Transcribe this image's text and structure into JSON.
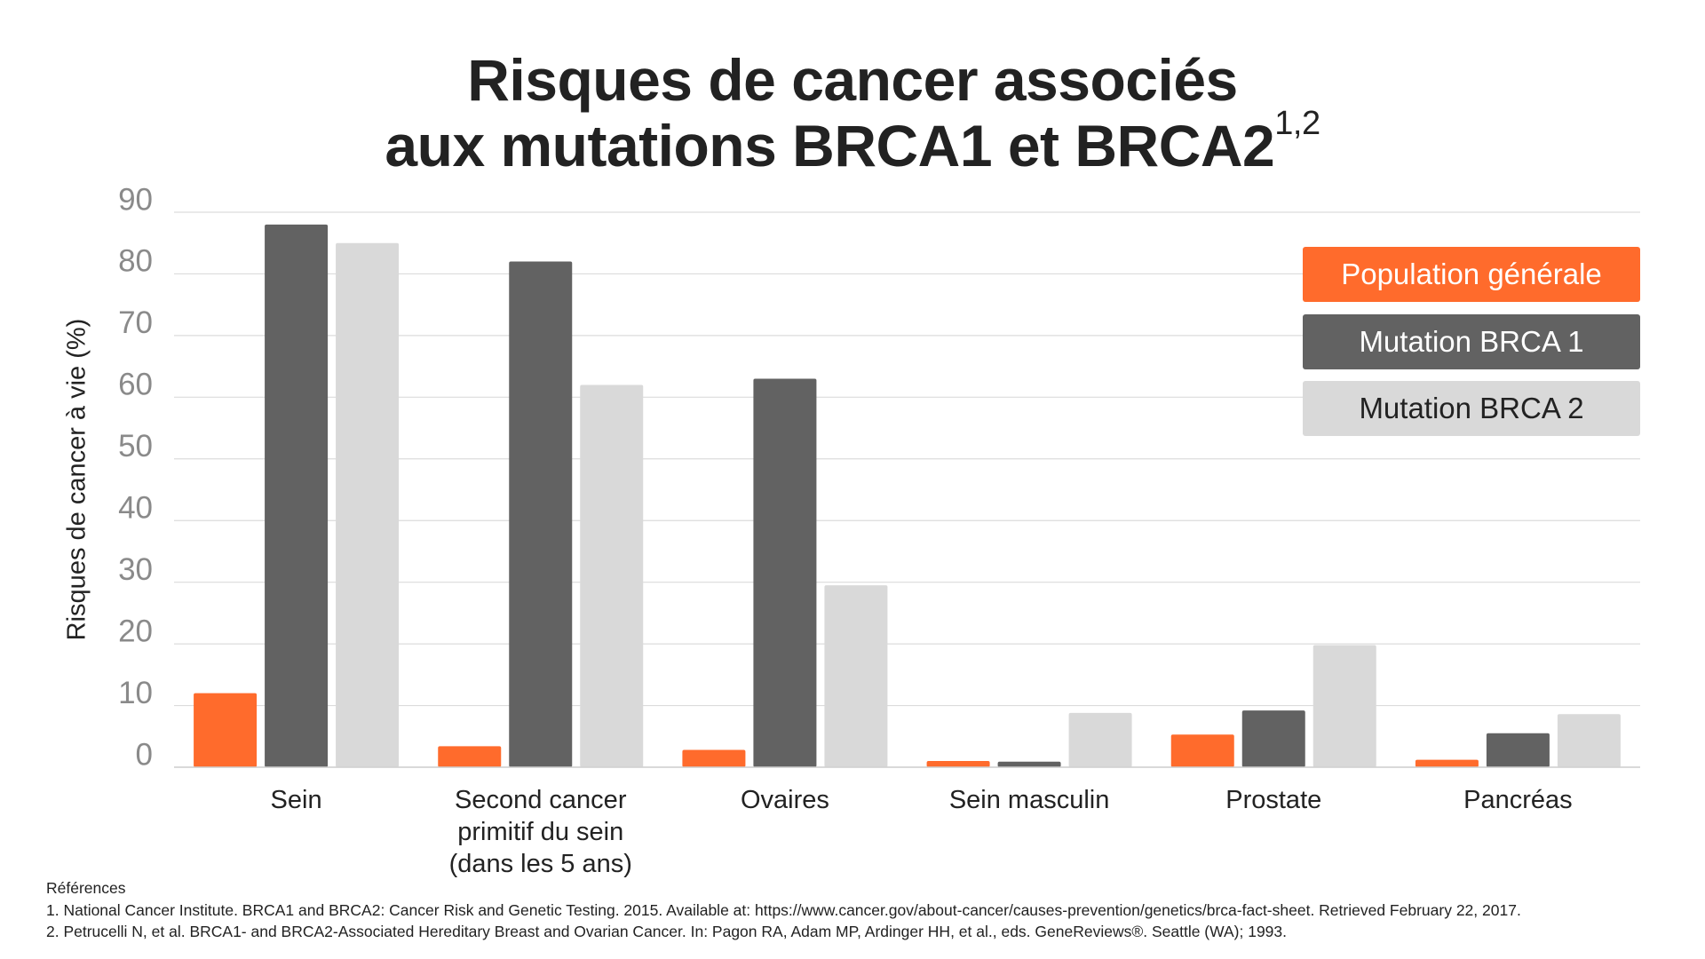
{
  "chart_data": {
    "type": "bar",
    "title_lines": [
      "Risques de cancer associés",
      "aux mutations BRCA1 et BRCA2"
    ],
    "title_superscript": "1,2",
    "y_label": "Risques de cancer à vie (%)",
    "categories": [
      "Sein",
      "Second cancer primitif du sein (dans les 5 ans)",
      "Ovaires",
      "Sein masculin",
      "Prostate",
      "Pancréas"
    ],
    "series": [
      {
        "name": "Population générale",
        "color": "#ff6b2c",
        "text_color": "#ffffff",
        "values": [
          12,
          3.4,
          2.8,
          1,
          5.3,
          1.2
        ]
      },
      {
        "name": "Mutation BRCA 1",
        "color": "#626262",
        "text_color": "#ffffff",
        "values": [
          88,
          82,
          63,
          0.9,
          9.2,
          5.5
        ]
      },
      {
        "name": "Mutation BRCA 2",
        "color": "#d9d9d9",
        "text_color": "#222222",
        "values": [
          85,
          62,
          29.5,
          8.8,
          19.8,
          8.6
        ]
      }
    ],
    "ylim": [
      0,
      90
    ],
    "yticks": [
      0,
      10,
      20,
      30,
      40,
      50,
      60,
      70,
      80,
      90
    ],
    "grid": true,
    "legend_position": "top-right",
    "references_title": "Références",
    "references": [
      "1. National Cancer Institute. BRCA1 and BRCA2: Cancer Risk and Genetic Testing. 2015. Available at: https://www.cancer.gov/about-cancer/causes-prevention/genetics/brca-fact-sheet. Retrieved February 22, 2017.",
      "2. Petrucelli N, et al. BRCA1- and BRCA2-Associated Hereditary Breast and Ovarian Cancer. In: Pagon RA, Adam MP, Ardinger HH, et al., eds. GeneReviews®. Seattle (WA); 1993."
    ]
  }
}
